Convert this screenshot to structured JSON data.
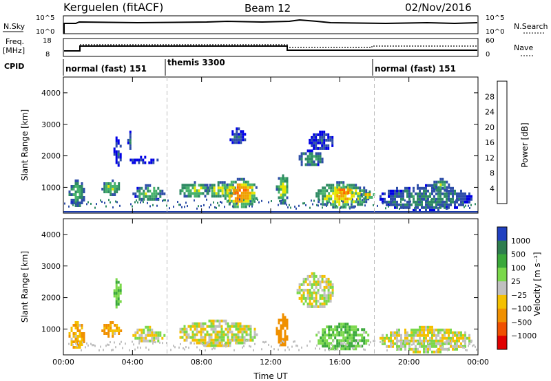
{
  "header": {
    "radar": "Kerguelen (fitACF)",
    "beam": "Beam 12",
    "date": "02/Nov/2016"
  },
  "top_panels": {
    "nsky_label": "N.Sky",
    "nsky_ticks": [
      "10^5",
      "10^0"
    ],
    "nsearch_label": "N.Search",
    "nsearch_ticks": [
      "10^5",
      "10^0"
    ],
    "freq_label": "Freq.",
    "freq_unit": "[MHz]",
    "freq_ticks": [
      "18",
      "8"
    ],
    "nave_label": "Nave",
    "nave_ticks": [
      "60",
      "0"
    ],
    "cpid_label": "CPID",
    "cpid_modes": [
      {
        "name": "normal (fast) 151",
        "start": 0,
        "end": 6
      },
      {
        "name": "themis 3300",
        "start": 6,
        "end": 18
      },
      {
        "name": "normal (fast) 151",
        "start": 18,
        "end": 24
      }
    ]
  },
  "chart_data": [
    {
      "type": "heatmap",
      "title": "",
      "xlabel": "Time UT",
      "ylabel": "Slant Range [km]",
      "xlim": [
        0,
        24
      ],
      "ylim": [
        180,
        4500
      ],
      "x_ticks": [
        "00:00",
        "04:00",
        "08:00",
        "12:00",
        "16:00",
        "20:00",
        "00:00"
      ],
      "y_ticks": [
        1000,
        2000,
        3000,
        4000
      ],
      "colorbar_label": "Power [dB]",
      "colorbar_ticks": [
        "4",
        "8",
        "12",
        "16",
        "20",
        "24",
        "28"
      ],
      "colorbar_colors": [
        "#0000e6",
        "#2e4ea8",
        "#2f8a64",
        "#46b26b",
        "#e6e600",
        "#f0a000",
        "#ff6600",
        "#e60000"
      ],
      "regions": [
        {
          "t": [
            0.3,
            1.2
          ],
          "r": [
            400,
            1250
          ],
          "p": 14
        },
        {
          "t": [
            2.2,
            3.3
          ],
          "r": [
            800,
            1250
          ],
          "p": 16
        },
        {
          "t": [
            2.9,
            3.3
          ],
          "r": [
            1700,
            2700
          ],
          "p": 6
        },
        {
          "t": [
            3.7,
            3.9
          ],
          "r": [
            2200,
            2800
          ],
          "p": 6
        },
        {
          "t": [
            4.0,
            5.8
          ],
          "r": [
            600,
            1100
          ],
          "p": 14
        },
        {
          "t": [
            3.6,
            5.5
          ],
          "r": [
            1800,
            2000
          ],
          "p": 6
        },
        {
          "t": [
            6.6,
            8.5
          ],
          "r": [
            700,
            1200
          ],
          "p": 16
        },
        {
          "t": [
            8.2,
            10.0
          ],
          "r": [
            700,
            1200
          ],
          "p": 18
        },
        {
          "t": [
            9.2,
            11.2
          ],
          "r": [
            400,
            1300
          ],
          "p": 25
        },
        {
          "t": [
            9.5,
            10.5
          ],
          "r": [
            2400,
            2900
          ],
          "p": 6
        },
        {
          "t": [
            12.3,
            13.0
          ],
          "r": [
            500,
            1500
          ],
          "p": 18
        },
        {
          "t": [
            13.5,
            15.0
          ],
          "r": [
            1700,
            2200
          ],
          "p": 12
        },
        {
          "t": [
            14.2,
            15.6
          ],
          "r": [
            2200,
            2800
          ],
          "p": 6
        },
        {
          "t": [
            14.6,
            17.6
          ],
          "r": [
            350,
            1200
          ],
          "p": 20
        },
        {
          "t": [
            15.6,
            16.8
          ],
          "r": [
            800,
            1050
          ],
          "p": 28
        },
        {
          "t": [
            17.2,
            18.1
          ],
          "r": [
            700,
            900
          ],
          "p": 22
        },
        {
          "t": [
            18.3,
            23.6
          ],
          "r": [
            300,
            1100
          ],
          "p": 10
        },
        {
          "t": [
            21.3,
            22.3
          ],
          "r": [
            900,
            1300
          ],
          "p": 14
        }
      ]
    },
    {
      "type": "heatmap",
      "title": "",
      "xlabel": "Time UT",
      "ylabel": "Slant Range [km]",
      "xlim": [
        0,
        24
      ],
      "ylim": [
        180,
        4500
      ],
      "x_ticks": [
        "00:00",
        "04:00",
        "08:00",
        "12:00",
        "16:00",
        "20:00",
        "00:00"
      ],
      "y_ticks": [
        1000,
        2000,
        3000,
        4000
      ],
      "colorbar_label": "Velocity [m s⁻¹]",
      "colorbar_ticks": [
        "1000",
        "500",
        "100",
        "25",
        "−25",
        "−100",
        "−500",
        "−1000"
      ],
      "colorbar_colors": [
        "#2040c0",
        "#2e7d4e",
        "#3aa83a",
        "#7ad84a",
        "#c0c0c0",
        "#f4c000",
        "#f09000",
        "#f05000",
        "#e00000"
      ],
      "regions": [
        {
          "t": [
            0.3,
            1.2
          ],
          "r": [
            400,
            1250
          ],
          "v": -100
        },
        {
          "t": [
            2.2,
            3.3
          ],
          "r": [
            800,
            1250
          ],
          "v": -100
        },
        {
          "t": [
            2.9,
            3.3
          ],
          "r": [
            1700,
            2700
          ],
          "v": 100
        },
        {
          "t": [
            4.0,
            5.8
          ],
          "r": [
            600,
            1100
          ],
          "v": 0
        },
        {
          "t": [
            6.6,
            11.2
          ],
          "r": [
            500,
            1300
          ],
          "v": 0
        },
        {
          "t": [
            12.3,
            13.0
          ],
          "r": [
            500,
            1500
          ],
          "v": -200
        },
        {
          "t": [
            13.5,
            15.6
          ],
          "r": [
            1700,
            2800
          ],
          "v": 0
        },
        {
          "t": [
            14.6,
            17.6
          ],
          "r": [
            350,
            1200
          ],
          "v": 100
        },
        {
          "t": [
            18.3,
            23.6
          ],
          "r": [
            300,
            1100
          ],
          "v": 0
        }
      ]
    }
  ]
}
